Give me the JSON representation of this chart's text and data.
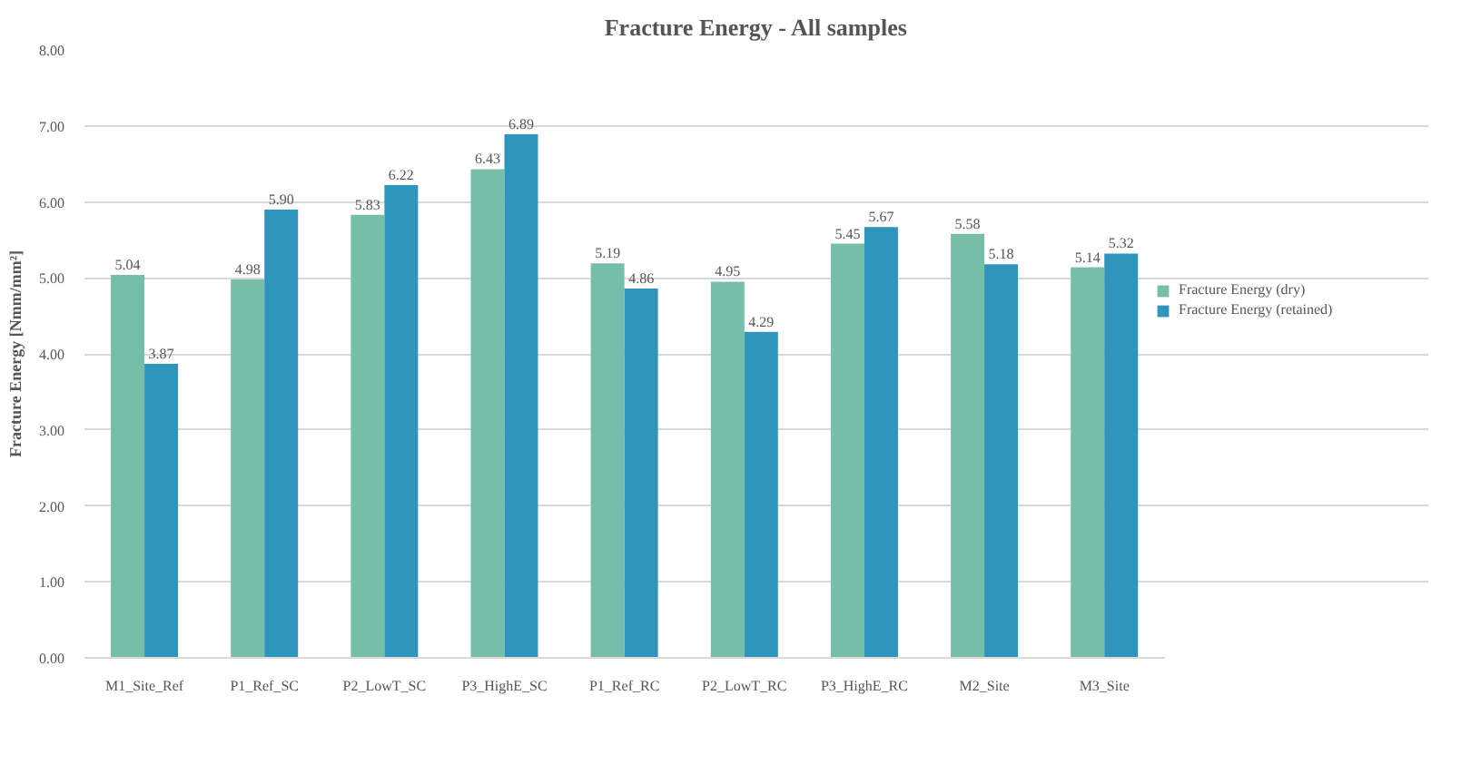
{
  "chart_data": {
    "type": "bar",
    "title": "Fracture Energy - All samples",
    "ylabel": "Fracture Energy [Nmm/mm²]",
    "categories": [
      "M1_Site_Ref",
      "P1_Ref_SC",
      "P2_LowT_SC",
      "P3_HighE_SC",
      "P1_Ref_RC",
      "P2_LowT_RC",
      "P3_HighE_RC",
      "M2_Site",
      "M3_Site"
    ],
    "series": [
      {
        "name": "Fracture Energy (dry)",
        "color": "#76bea8",
        "values": [
          5.04,
          4.98,
          5.83,
          6.43,
          5.19,
          4.95,
          5.45,
          5.58,
          5.14
        ],
        "value_labels": [
          "5.04",
          "4.98",
          "5.83",
          "6.43",
          "5.19",
          "4.95",
          "5.45",
          "5.58",
          "5.14"
        ]
      },
      {
        "name": "Fracture Energy (retained)",
        "color": "#3095bd",
        "values": [
          3.87,
          5.9,
          6.22,
          6.89,
          4.86,
          4.29,
          5.67,
          5.18,
          5.32
        ],
        "value_labels": [
          "3.87",
          "5.90",
          "6.22",
          "6.89",
          "4.86",
          "4.29",
          "5.67",
          "5.18",
          "5.32"
        ]
      }
    ],
    "ylim": [
      0,
      8
    ],
    "yticks": [
      {
        "value": 0,
        "label": "0.00"
      },
      {
        "value": 1,
        "label": "1.00"
      },
      {
        "value": 2,
        "label": "2.00"
      },
      {
        "value": 3,
        "label": "3.00"
      },
      {
        "value": 4,
        "label": "4.00"
      },
      {
        "value": 5,
        "label": "5.00"
      },
      {
        "value": 6,
        "label": "6.00"
      },
      {
        "value": 7,
        "label": "7.00"
      },
      {
        "value": 8,
        "label": "8.00"
      }
    ],
    "grid": "y",
    "legend": "right"
  }
}
